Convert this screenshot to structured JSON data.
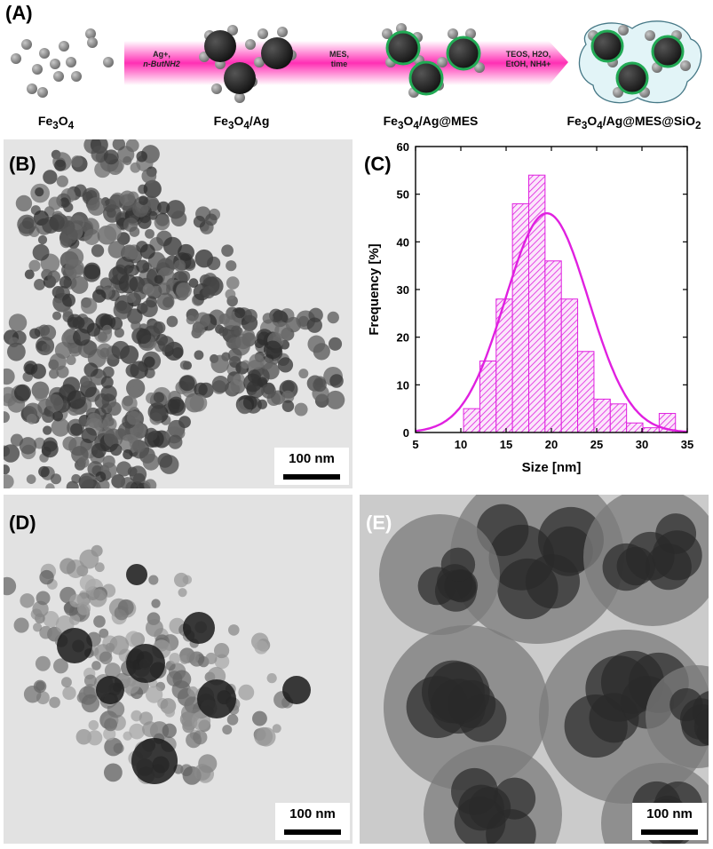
{
  "panels": {
    "a": "(A)",
    "b": "(B)",
    "c": "(C)",
    "d": "(D)",
    "e": "(E)"
  },
  "scheme": {
    "labels": [
      "Fe3O4",
      "Fe3O4/Ag",
      "Fe3O4/Ag@MES",
      "Fe3O4/Ag@MES@SiO2"
    ],
    "step1": [
      "Ag+,",
      "n-ButNH2"
    ],
    "step2": [
      "MES,",
      "time"
    ],
    "step3": [
      "TEOS, H2O,",
      "EtOH, NH4+"
    ],
    "arrow_color": "#ff2fb4"
  },
  "scale_bars": {
    "b": "100 nm",
    "d": "100 nm",
    "e": "100 nm"
  },
  "chart_data": {
    "type": "bar",
    "xlabel": "Size [nm]",
    "ylabel": "Frequency [%]",
    "xlim": [
      5,
      35
    ],
    "ylim": [
      0,
      60
    ],
    "xticks": [
      5,
      10,
      15,
      20,
      25,
      30,
      35
    ],
    "yticks": [
      0,
      10,
      20,
      30,
      40,
      50,
      60
    ],
    "bin_width": 1.8,
    "bins": [
      {
        "center": 11.2,
        "value": 5
      },
      {
        "center": 13.0,
        "value": 15
      },
      {
        "center": 14.8,
        "value": 28
      },
      {
        "center": 16.6,
        "value": 48
      },
      {
        "center": 18.4,
        "value": 54
      },
      {
        "center": 20.2,
        "value": 36
      },
      {
        "center": 22.0,
        "value": 28
      },
      {
        "center": 23.8,
        "value": 17
      },
      {
        "center": 25.6,
        "value": 7
      },
      {
        "center": 27.4,
        "value": 6
      },
      {
        "center": 29.2,
        "value": 2
      },
      {
        "center": 31.0,
        "value": 1
      },
      {
        "center": 32.8,
        "value": 4
      }
    ],
    "fit": {
      "type": "gaussian",
      "mean": 19.5,
      "sigma": 4.6,
      "amplitude": 46
    },
    "color": "#e020e0"
  }
}
